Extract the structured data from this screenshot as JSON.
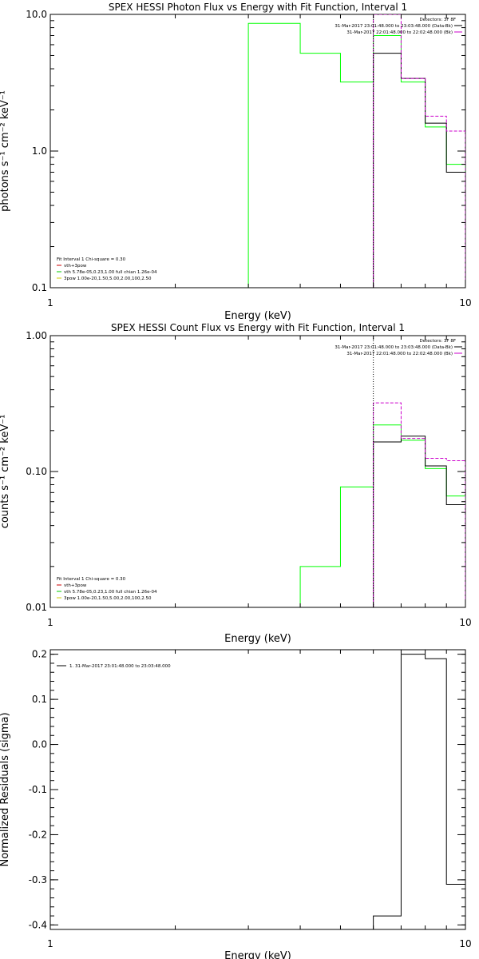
{
  "chart_data": [
    {
      "type": "line",
      "title": "SPEX HESSI Photon Flux vs Energy with Fit Function, Interval 1",
      "xlabel": "Energy (keV)",
      "ylabel": "photons s⁻¹ cm⁻² keV⁻¹",
      "xscale": "log",
      "yscale": "log",
      "xlim": [
        1,
        10
      ],
      "ylim": [
        0.1,
        10.0
      ],
      "xtick_labels": [
        "1",
        "10"
      ],
      "ytick_values": [
        0.1,
        1.0,
        10.0
      ],
      "ytick_labels": [
        "0.1",
        "1.0",
        "10.0"
      ],
      "vline_x": 6.0,
      "legend_top_right": {
        "title": "Detectors: 3F 8F",
        "entries": [
          {
            "text": "31-Mar-2017 23:01:48.000 to 23:03:48.000 (Data-Bk)",
            "color": "#000000"
          },
          {
            "text": "31-Mar-2017 22:01:48.000 to 22:02:48.000 (Bk)",
            "color": "#cc00cc"
          }
        ]
      },
      "legend_bottom_left": {
        "header": "Fit Interval 1    Chi-square = 0.30",
        "entries": [
          {
            "text": "vth+3pow",
            "color": "#cc0000"
          },
          {
            "text": "vth 5.78e-05,0.23,1.00  full chian 1.26e-04",
            "color": "#00cc00"
          },
          {
            "text": "3pow 1.00e-20,1.50,5.00,2.00,100,2.50",
            "color": "#cccc00"
          }
        ]
      },
      "series": [
        {
          "color": "#00ff00",
          "edges": [
            3.0,
            4.0,
            5.0,
            6.0,
            7.0,
            8.0,
            9.0,
            10.0
          ],
          "values": [
            8.6,
            5.2,
            3.2,
            7.0,
            3.2,
            1.5,
            0.8
          ]
        },
        {
          "color": "#000000",
          "edges": [
            6.0,
            7.0,
            8.0,
            9.0,
            10.0
          ],
          "values": [
            5.2,
            3.4,
            1.6,
            0.7
          ]
        },
        {
          "color": "#cc00cc",
          "edges": [
            6.0,
            7.0,
            8.0,
            9.0,
            10.0
          ],
          "values": [
            10.0,
            3.4,
            1.8,
            1.4
          ]
        }
      ]
    },
    {
      "type": "line",
      "title": "SPEX HESSI Count Flux vs Energy with Fit Function, Interval 1",
      "xlabel": "Energy (keV)",
      "ylabel": "counts s⁻¹ cm⁻² keV⁻¹",
      "xscale": "log",
      "yscale": "log",
      "xlim": [
        1,
        10
      ],
      "ylim": [
        0.01,
        1.0
      ],
      "xtick_labels": [
        "1",
        "10"
      ],
      "ytick_values": [
        0.01,
        0.1,
        1.0
      ],
      "ytick_labels": [
        "0.01",
        "0.10",
        "1.00"
      ],
      "vline_x": 6.0,
      "legend_top_right": {
        "title": "Detectors: 3F 8F",
        "entries": [
          {
            "text": "31-Mar-2017 23:01:48.000 to 23:03:48.000 (Data-Bk)",
            "color": "#000000"
          },
          {
            "text": "31-Mar-2017 22:01:48.000 to 22:02:48.000 (Bk)",
            "color": "#cc00cc"
          }
        ]
      },
      "legend_bottom_left": {
        "header": "Fit Interval 1    Chi-square = 0.30",
        "entries": [
          {
            "text": "vth+3pow",
            "color": "#cc0000"
          },
          {
            "text": "vth 5.78e-05,0.23,1.00  full chian 1.26e-04",
            "color": "#00cc00"
          },
          {
            "text": "3pow 1.00e-20,1.50,5.00,2.00,100,2.50",
            "color": "#cccc00"
          }
        ]
      },
      "series": [
        {
          "color": "#00ff00",
          "edges": [
            4.0,
            5.0,
            6.0,
            7.0,
            8.0,
            9.0,
            10.0
          ],
          "values": [
            0.02,
            0.077,
            0.22,
            0.17,
            0.105,
            0.066
          ]
        },
        {
          "color": "#000000",
          "edges": [
            6.0,
            7.0,
            8.0,
            9.0,
            10.0
          ],
          "values": [
            0.165,
            0.182,
            0.11,
            0.057
          ]
        },
        {
          "color": "#cc00cc",
          "edges": [
            6.0,
            7.0,
            8.0,
            9.0,
            10.0
          ],
          "values": [
            0.32,
            0.175,
            0.125,
            0.12
          ]
        }
      ]
    },
    {
      "type": "line",
      "title": "",
      "xlabel": "Energy (keV)",
      "ylabel": "Normalized Residuals (sigma)",
      "xscale": "log",
      "yscale": "linear",
      "xlim": [
        1,
        10
      ],
      "ylim": [
        -0.41,
        0.21
      ],
      "xtick_labels": [
        "1",
        "10"
      ],
      "ytick_values": [
        0.2,
        0.1,
        0.0,
        -0.1,
        -0.2,
        -0.3,
        -0.4
      ],
      "ytick_labels": [
        "0.2",
        "0.1",
        "0.0",
        "-0.1",
        "-0.2",
        "-0.3",
        "-0.4"
      ],
      "legend_top_left": {
        "entries": [
          {
            "text": "1. 31-Mar-2017 23:01:48.000 to 23:03:48.000",
            "color": "#000000"
          }
        ]
      },
      "series": [
        {
          "color": "#000000",
          "edges": [
            6.0,
            7.0,
            8.0,
            9.0,
            10.0
          ],
          "values": [
            -0.38,
            0.2,
            0.19,
            -0.31
          ]
        }
      ]
    }
  ]
}
